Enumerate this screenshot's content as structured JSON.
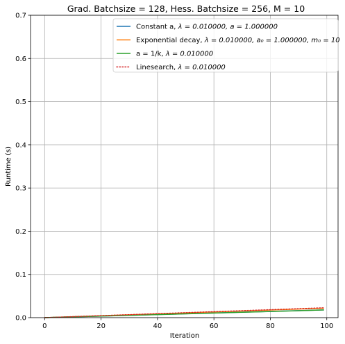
{
  "chart_data": {
    "type": "line",
    "title": "Grad. Batchsize = 128, Hess. Batchsize = 256, M = 10",
    "xlabel": "Iteration",
    "ylabel": "Runtime (s)",
    "xlim": [
      -5,
      104
    ],
    "ylim": [
      0.0,
      0.7
    ],
    "xticks": [
      0,
      20,
      40,
      60,
      80,
      100
    ],
    "yticks": [
      0.0,
      0.1,
      0.2,
      0.3,
      0.4,
      0.5,
      0.6,
      0.7
    ],
    "xtick_labels": [
      "0",
      "20",
      "40",
      "60",
      "80",
      "100"
    ],
    "ytick_labels": [
      "0.0",
      "0.1",
      "0.2",
      "0.3",
      "0.4",
      "0.5",
      "0.6",
      "0.7"
    ],
    "grid": true,
    "legend_position": "top-right",
    "x": [
      0,
      10,
      20,
      30,
      40,
      50,
      60,
      70,
      80,
      90,
      99
    ],
    "series": [
      {
        "name": "Constant a, λ = 0.010000, a = 1.000000",
        "legend": {
          "prefix": "Constant a, ",
          "math": "λ = 0.010000, a = 1.000000"
        },
        "color": "#1f77b4",
        "style": "solid",
        "values": [
          0.0,
          0.002,
          0.0036,
          0.0054,
          0.0072,
          0.009,
          0.0108,
          0.0126,
          0.0144,
          0.0162,
          0.0179
        ]
      },
      {
        "name": "Exponential decay, λ = 0.010000, a0 = 1.000000, m0 = 10",
        "legend": {
          "prefix": "Exponential decay, ",
          "math": "λ = 0.010000, a₀ = 1.000000, m₀ = 10"
        },
        "color": "#ff7f0e",
        "style": "solid",
        "values": [
          0.0,
          0.0022,
          0.0044,
          0.0066,
          0.0088,
          0.011,
          0.0132,
          0.0154,
          0.0176,
          0.0198,
          0.0218
        ]
      },
      {
        "name": "a = 1/k, λ = 0.010000",
        "legend": {
          "prefix": "a = 1/k, ",
          "math": "λ = 0.010000"
        },
        "color": "#2ca02c",
        "style": "solid",
        "values": [
          0.0,
          0.002,
          0.0036,
          0.0053,
          0.007,
          0.0088,
          0.0106,
          0.0124,
          0.0142,
          0.016,
          0.0178
        ]
      },
      {
        "name": "Linesearch, λ = 0.010000",
        "legend": {
          "prefix": "Linesearch, ",
          "math": "λ = 0.010000"
        },
        "color": "#d62728",
        "style": "dotted",
        "values": [
          0.0,
          0.0023,
          0.0046,
          0.0069,
          0.0092,
          0.0115,
          0.0138,
          0.0161,
          0.0184,
          0.0207,
          0.0228
        ]
      }
    ]
  }
}
